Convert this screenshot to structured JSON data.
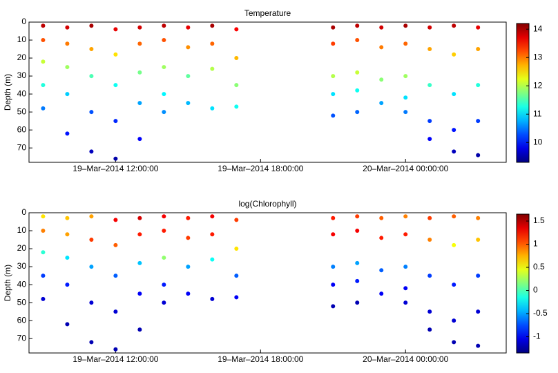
{
  "chart_data": [
    {
      "type": "scatter",
      "title": "Temperature",
      "ylabel": "Depth (m)",
      "colormap": "jet",
      "y_reversed": true,
      "xlim": [
        "2014-03-19T08:25:00",
        "2014-03-20T04:10:00"
      ],
      "xticks": [
        {
          "value": "2014-03-19T12:00:00",
          "label": "19–Mar–2014 12:00:00"
        },
        {
          "value": "2014-03-19T18:00:00",
          "label": "19–Mar–2014 18:00:00"
        },
        {
          "value": "2014-03-20T00:00:00",
          "label": "20–Mar–2014 00:00:00"
        }
      ],
      "ylim": [
        0,
        78
      ],
      "yticks": [
        0,
        10,
        20,
        30,
        40,
        50,
        60,
        70
      ],
      "clim": [
        9.3,
        14.2
      ],
      "cticks": [
        10,
        11,
        12,
        13,
        14
      ],
      "profiles": [
        {
          "time": "2014-03-19T09:00:00",
          "depth": [
            2,
            10,
            22,
            35,
            48
          ],
          "value": [
            13.9,
            13.2,
            12.1,
            11.3,
            10.5
          ]
        },
        {
          "time": "2014-03-19T10:00:00",
          "depth": [
            3,
            12,
            25,
            40,
            62
          ],
          "value": [
            13.8,
            13.0,
            11.9,
            10.9,
            10.0
          ]
        },
        {
          "time": "2014-03-19T11:00:00",
          "depth": [
            2,
            15,
            30,
            50,
            72
          ],
          "value": [
            14.0,
            12.8,
            11.5,
            10.3,
            9.6
          ]
        },
        {
          "time": "2014-03-19T12:00:00",
          "depth": [
            4,
            18,
            35,
            55,
            76
          ],
          "value": [
            13.7,
            12.5,
            11.2,
            10.1,
            9.5
          ]
        },
        {
          "time": "2014-03-19T13:00:00",
          "depth": [
            3,
            12,
            28,
            45,
            65
          ],
          "value": [
            13.8,
            13.1,
            11.7,
            10.7,
            9.9
          ]
        },
        {
          "time": "2014-03-19T14:00:00",
          "depth": [
            2,
            10,
            25,
            40,
            50
          ],
          "value": [
            13.9,
            13.2,
            11.9,
            11.1,
            10.6
          ]
        },
        {
          "time": "2014-03-19T15:00:00",
          "depth": [
            3,
            14,
            30,
            45
          ],
          "value": [
            13.7,
            12.9,
            11.6,
            10.8
          ]
        },
        {
          "time": "2014-03-19T16:00:00",
          "depth": [
            2,
            12,
            26,
            48
          ],
          "value": [
            14.0,
            13.1,
            12.0,
            11.0
          ]
        },
        {
          "time": "2014-03-19T17:00:00",
          "depth": [
            4,
            20,
            35,
            47
          ],
          "value": [
            13.6,
            12.7,
            11.8,
            11.2
          ]
        },
        {
          "time": "2014-03-19T21:00:00",
          "depth": [
            3,
            12,
            30,
            40,
            52
          ],
          "value": [
            14.0,
            13.3,
            12.0,
            11.0,
            10.3
          ]
        },
        {
          "time": "2014-03-19T22:00:00",
          "depth": [
            2,
            10,
            28,
            38,
            50
          ],
          "value": [
            13.9,
            13.2,
            12.1,
            11.2,
            10.4
          ]
        },
        {
          "time": "2014-03-19T23:00:00",
          "depth": [
            3,
            14,
            32,
            45
          ],
          "value": [
            13.8,
            13.0,
            11.8,
            10.7
          ]
        },
        {
          "time": "2014-03-20T00:00:00",
          "depth": [
            2,
            12,
            30,
            42,
            50
          ],
          "value": [
            14.0,
            13.1,
            11.9,
            11.0,
            10.5
          ]
        },
        {
          "time": "2014-03-20T01:00:00",
          "depth": [
            3,
            15,
            35,
            55,
            65
          ],
          "value": [
            13.8,
            12.8,
            11.4,
            10.2,
            9.9
          ]
        },
        {
          "time": "2014-03-20T02:00:00",
          "depth": [
            2,
            18,
            40,
            60,
            72
          ],
          "value": [
            13.9,
            12.6,
            11.0,
            10.0,
            9.6
          ]
        },
        {
          "time": "2014-03-20T03:00:00",
          "depth": [
            3,
            15,
            35,
            55,
            74
          ],
          "value": [
            13.7,
            12.8,
            11.3,
            10.2,
            9.5
          ]
        }
      ]
    },
    {
      "type": "scatter",
      "title": "log(Chlorophyll)",
      "ylabel": "Depth (m)",
      "colormap": "jet",
      "y_reversed": true,
      "xlim": [
        "2014-03-19T08:25:00",
        "2014-03-20T04:10:00"
      ],
      "xticks": [
        {
          "value": "2014-03-19T12:00:00",
          "label": "19–Mar–2014 12:00:00"
        },
        {
          "value": "2014-03-19T18:00:00",
          "label": "19–Mar–2014 18:00:00"
        },
        {
          "value": "2014-03-20T00:00:00",
          "label": "20–Mar–2014 00:00:00"
        }
      ],
      "ylim": [
        0,
        78
      ],
      "yticks": [
        0,
        10,
        20,
        30,
        40,
        50,
        60,
        70
      ],
      "clim": [
        -1.35,
        1.65
      ],
      "cticks": [
        -1,
        -0.5,
        0,
        0.5,
        1,
        1.5
      ],
      "profiles": [
        {
          "time": "2014-03-19T09:00:00",
          "depth": [
            2,
            10,
            22,
            35,
            48
          ],
          "value": [
            0.6,
            0.9,
            -0.1,
            -0.8,
            -1.1
          ]
        },
        {
          "time": "2014-03-19T10:00:00",
          "depth": [
            3,
            12,
            25,
            40,
            62
          ],
          "value": [
            0.7,
            0.8,
            -0.3,
            -0.9,
            -1.2
          ]
        },
        {
          "time": "2014-03-19T11:00:00",
          "depth": [
            2,
            15,
            30,
            50,
            72
          ],
          "value": [
            0.8,
            1.1,
            -0.5,
            -1.1,
            -1.2
          ]
        },
        {
          "time": "2014-03-19T12:00:00",
          "depth": [
            4,
            18,
            35,
            55,
            76
          ],
          "value": [
            1.3,
            1.0,
            -0.7,
            -1.1,
            -1.2
          ]
        },
        {
          "time": "2014-03-19T13:00:00",
          "depth": [
            3,
            12,
            28,
            45,
            65
          ],
          "value": [
            1.4,
            1.2,
            -0.4,
            -1.0,
            -1.2
          ]
        },
        {
          "time": "2014-03-19T14:00:00",
          "depth": [
            2,
            10,
            25,
            40,
            50
          ],
          "value": [
            1.3,
            1.2,
            0.2,
            -0.9,
            -1.1
          ]
        },
        {
          "time": "2014-03-19T15:00:00",
          "depth": [
            3,
            14,
            30,
            45
          ],
          "value": [
            1.2,
            1.1,
            -0.5,
            -1.0
          ]
        },
        {
          "time": "2014-03-19T16:00:00",
          "depth": [
            2,
            12,
            26,
            48
          ],
          "value": [
            1.3,
            1.2,
            -0.2,
            -1.1
          ]
        },
        {
          "time": "2014-03-19T17:00:00",
          "depth": [
            4,
            20,
            35,
            47
          ],
          "value": [
            1.1,
            0.6,
            -0.7,
            -1.0
          ]
        },
        {
          "time": "2014-03-19T21:00:00",
          "depth": [
            3,
            12,
            30,
            40,
            52
          ],
          "value": [
            1.2,
            1.3,
            -0.6,
            -1.0,
            -1.2
          ]
        },
        {
          "time": "2014-03-19T22:00:00",
          "depth": [
            2,
            10,
            28,
            38,
            50
          ],
          "value": [
            1.1,
            1.3,
            -0.5,
            -0.9,
            -1.2
          ]
        },
        {
          "time": "2014-03-19T23:00:00",
          "depth": [
            3,
            14,
            32,
            45
          ],
          "value": [
            1.0,
            1.2,
            -0.7,
            -1.0
          ]
        },
        {
          "time": "2014-03-20T00:00:00",
          "depth": [
            2,
            12,
            30,
            42,
            50
          ],
          "value": [
            0.9,
            1.2,
            -0.6,
            -1.0,
            -1.1
          ]
        },
        {
          "time": "2014-03-20T01:00:00",
          "depth": [
            3,
            15,
            35,
            55,
            65
          ],
          "value": [
            1.1,
            0.9,
            -0.8,
            -1.1,
            -1.2
          ]
        },
        {
          "time": "2014-03-20T02:00:00",
          "depth": [
            2,
            18,
            40,
            60,
            72
          ],
          "value": [
            1.0,
            0.5,
            -0.9,
            -1.1,
            -1.2
          ]
        },
        {
          "time": "2014-03-20T03:00:00",
          "depth": [
            3,
            15,
            35,
            55,
            74
          ],
          "value": [
            0.9,
            0.7,
            -0.8,
            -1.1,
            -1.2
          ]
        }
      ]
    }
  ]
}
